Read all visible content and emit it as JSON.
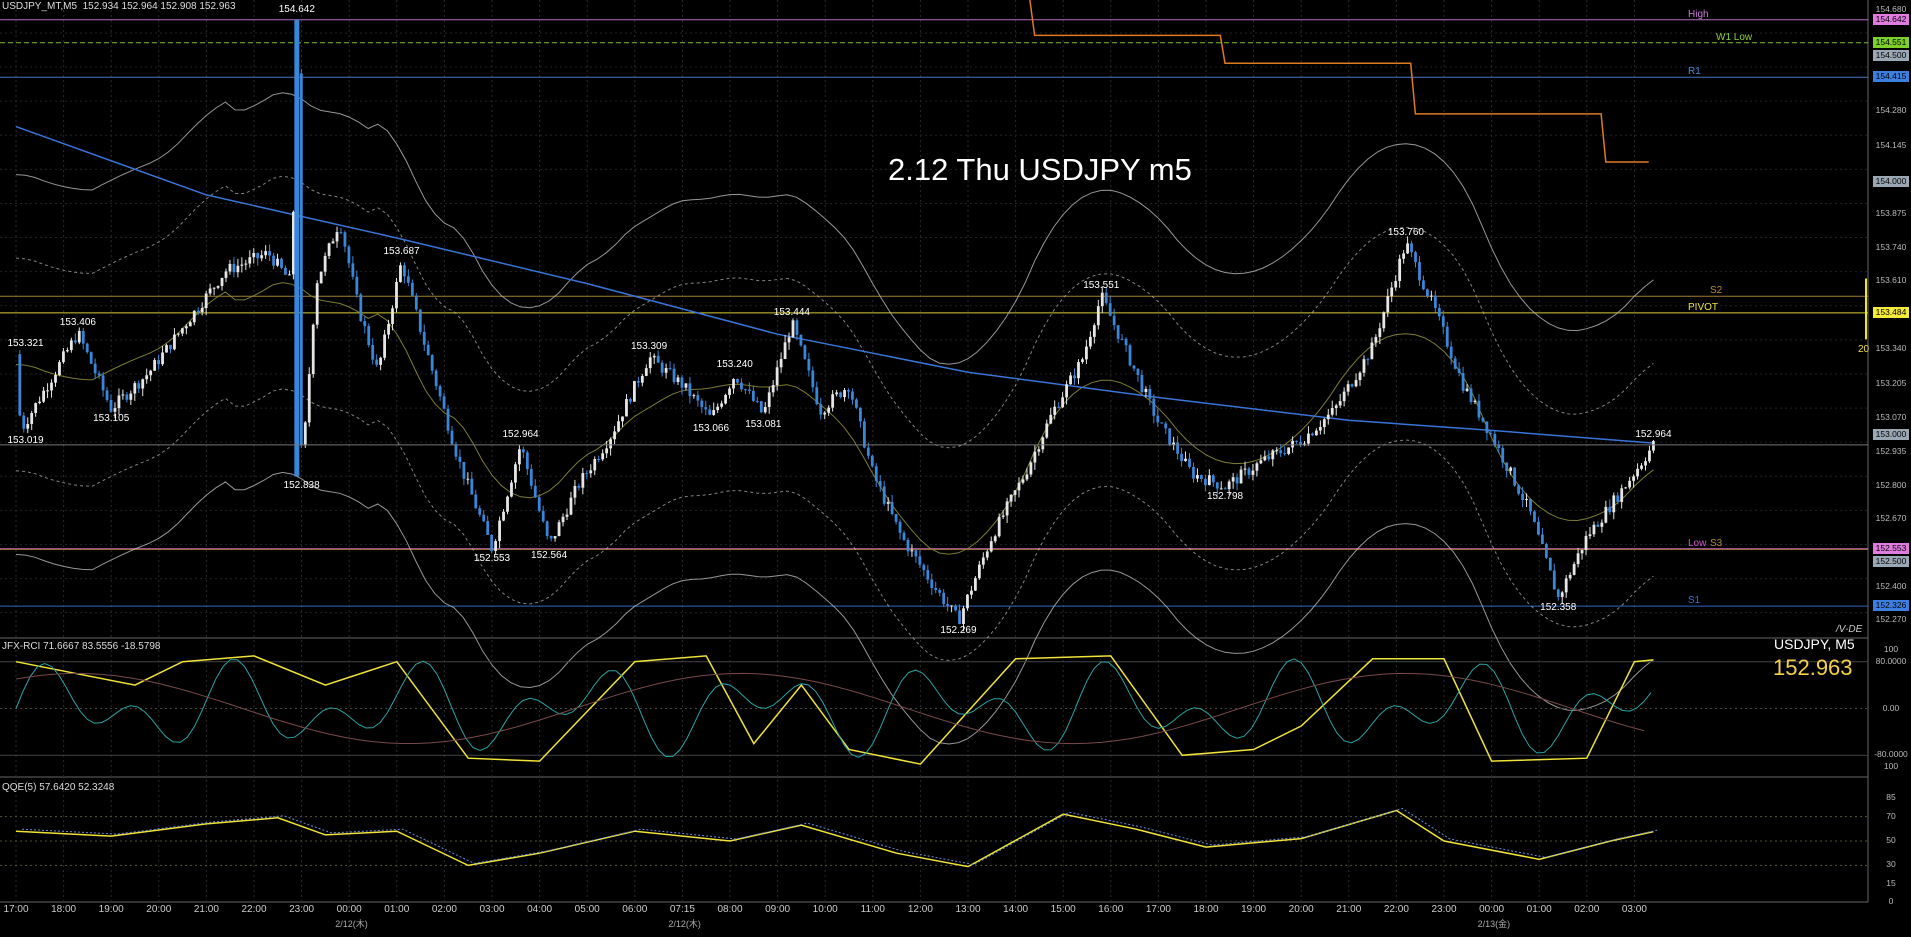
{
  "window": {
    "symbol_tf": "USDJPY_MT,M5",
    "ohlc": "152.934 152.964 152.908 152.963",
    "title_overlay": "2.12 Thu USDJPY m5",
    "badge": "/V-DE"
  },
  "price_panel": {
    "symbol_label": "USDJPY, M5",
    "current_price": "152.963",
    "vertical_tag": "20"
  },
  "levels": [
    {
      "name": "High",
      "price": 154.642,
      "color": "#c77bd6"
    },
    {
      "name": "W1 Low",
      "price": 154.551,
      "color": "#8fd22f"
    },
    {
      "name": "R1",
      "price": 154.415,
      "color": "#4f86d9"
    },
    {
      "name": "S2",
      "price": 153.55,
      "color": "#b58a3a"
    },
    {
      "name": "PIVOT",
      "price": 153.484,
      "color": "#f0e33a"
    },
    {
      "name": "Low",
      "price": 152.553,
      "color": "#d05ad0"
    },
    {
      "name": "S3",
      "price": 152.55,
      "color": "#b58a3a"
    },
    {
      "name": "S1",
      "price": 152.326,
      "color": "#3a6fd8"
    }
  ],
  "price_tags": [
    {
      "text": "154.642",
      "price": 154.642,
      "bg": "#e07be0"
    },
    {
      "text": "154.551",
      "price": 154.551,
      "bg": "#7dd02a"
    },
    {
      "text": "154.500",
      "price": 154.5,
      "bg": "#9aa7b4"
    },
    {
      "text": "154.415",
      "price": 154.415,
      "bg": "#3c7fe0"
    },
    {
      "text": "154.000",
      "price": 154.0,
      "bg": "#9aa7b4"
    },
    {
      "text": "153.484",
      "price": 153.484,
      "bg": "#f4ea3a"
    },
    {
      "text": "153.000",
      "price": 153.0,
      "bg": "#9aa7b4"
    },
    {
      "text": "152.553",
      "price": 152.553,
      "bg": "#e07be0"
    },
    {
      "text": "152.500",
      "price": 152.5,
      "bg": "#9aa7b4"
    },
    {
      "text": "152.326",
      "price": 152.326,
      "bg": "#3c7fe0"
    }
  ],
  "price_axis_ticks": [
    "154.680",
    "154.280",
    "154.145",
    "153.875",
    "153.740",
    "153.610",
    "153.340",
    "153.205",
    "153.070",
    "152.935",
    "152.800",
    "152.670",
    "152.400",
    "152.270"
  ],
  "rci_panel": {
    "label": "JFX-RCI 71.6667 83.5556 -18.5798",
    "axis": [
      "100",
      "80.0000",
      "0.00",
      "-80.0000",
      "100"
    ]
  },
  "qqe_panel": {
    "label": "QQE(5) 57.6420 52.3248",
    "axis": [
      "85",
      "70",
      "50",
      "30",
      "15",
      "0"
    ]
  },
  "time_axis": [
    "17:00",
    "18:00",
    "19:00",
    "20:00",
    "21:00",
    "22:00",
    "23:00",
    "00:00",
    "01:00",
    "02:00",
    "03:00",
    "04:00",
    "05:00",
    "06:00",
    "07:15",
    "08:00",
    "09:00",
    "10:00",
    "11:00",
    "12:00",
    "13:00",
    "14:00",
    "15:00",
    "16:00",
    "17:00",
    "18:00",
    "19:00",
    "20:00",
    "21:00",
    "22:00",
    "23:00",
    "00:00",
    "01:00",
    "02:00",
    "03:00"
  ],
  "date_labels": [
    {
      "text": "2/12(木)",
      "slot": 7
    },
    {
      "text": "2/12(木)",
      "slot": 14
    },
    {
      "text": "2/13(金)",
      "slot": 31
    }
  ],
  "chart_data": {
    "type": "candlestick",
    "title": "2.12 Thu USDJPY m5",
    "symbol": "USDJPY",
    "timeframe": "M5",
    "ylim": [
      152.2,
      154.72
    ],
    "price_path": [
      {
        "t": 0,
        "p": 153.321
      },
      {
        "t": 0.1,
        "p": 153.019
      },
      {
        "t": 1.3,
        "p": 153.406
      },
      {
        "t": 2,
        "p": 153.105
      },
      {
        "t": 2.8,
        "p": 153.25
      },
      {
        "t": 3.6,
        "p": 153.45
      },
      {
        "t": 4.4,
        "p": 153.65
      },
      {
        "t": 5.3,
        "p": 153.72
      },
      {
        "t": 5.8,
        "p": 153.6
      },
      {
        "t": 5.9,
        "p": 154.642
      },
      {
        "t": 6.0,
        "p": 152.838
      },
      {
        "t": 6.3,
        "p": 153.6
      },
      {
        "t": 6.8,
        "p": 153.85
      },
      {
        "t": 7.2,
        "p": 153.5
      },
      {
        "t": 7.6,
        "p": 153.25
      },
      {
        "t": 8.1,
        "p": 153.687
      },
      {
        "t": 8.6,
        "p": 153.35
      },
      {
        "t": 9.3,
        "p": 152.9
      },
      {
        "t": 10.0,
        "p": 152.553
      },
      {
        "t": 10.6,
        "p": 152.964
      },
      {
        "t": 11.2,
        "p": 152.564
      },
      {
        "t": 11.8,
        "p": 152.8
      },
      {
        "t": 12.5,
        "p": 153.0
      },
      {
        "t": 13.3,
        "p": 153.309
      },
      {
        "t": 14.0,
        "p": 153.2
      },
      {
        "t": 14.6,
        "p": 153.066
      },
      {
        "t": 15.1,
        "p": 153.24
      },
      {
        "t": 15.7,
        "p": 153.081
      },
      {
        "t": 16.3,
        "p": 153.444
      },
      {
        "t": 16.9,
        "p": 153.1
      },
      {
        "t": 17.5,
        "p": 153.2
      },
      {
        "t": 18.0,
        "p": 152.85
      },
      {
        "t": 18.6,
        "p": 152.6
      },
      {
        "t": 19.3,
        "p": 152.4
      },
      {
        "t": 19.8,
        "p": 152.269
      },
      {
        "t": 20.5,
        "p": 152.6
      },
      {
        "t": 21.2,
        "p": 152.85
      },
      {
        "t": 21.8,
        "p": 153.1
      },
      {
        "t": 22.4,
        "p": 153.3
      },
      {
        "t": 22.8,
        "p": 153.551
      },
      {
        "t": 23.4,
        "p": 153.3
      },
      {
        "t": 24.0,
        "p": 153.05
      },
      {
        "t": 24.7,
        "p": 152.85
      },
      {
        "t": 25.4,
        "p": 152.798
      },
      {
        "t": 26.2,
        "p": 152.9
      },
      {
        "t": 27.0,
        "p": 152.98
      },
      {
        "t": 27.7,
        "p": 153.1
      },
      {
        "t": 28.5,
        "p": 153.35
      },
      {
        "t": 29.2,
        "p": 153.76
      },
      {
        "t": 29.8,
        "p": 153.5
      },
      {
        "t": 30.4,
        "p": 153.2
      },
      {
        "t": 31.0,
        "p": 153.0
      },
      {
        "t": 31.8,
        "p": 152.7
      },
      {
        "t": 32.4,
        "p": 152.358
      },
      {
        "t": 33.0,
        "p": 152.6
      },
      {
        "t": 33.8,
        "p": 152.8
      },
      {
        "t": 34.4,
        "p": 152.963
      }
    ],
    "price_labels": [
      {
        "text": "154.642",
        "t": 5.9,
        "p": 154.642,
        "pos": "above"
      },
      {
        "text": "153.321",
        "t": 0.2,
        "p": 153.321,
        "pos": "above"
      },
      {
        "text": "153.406",
        "t": 1.3,
        "p": 153.406,
        "pos": "above"
      },
      {
        "text": "153.105",
        "t": 2,
        "p": 153.105,
        "pos": "below"
      },
      {
        "text": "153.019",
        "t": 0.2,
        "p": 153.019,
        "pos": "below"
      },
      {
        "text": "152.838",
        "t": 6.0,
        "p": 152.838,
        "pos": "below"
      },
      {
        "text": "153.687",
        "t": 8.1,
        "p": 153.687,
        "pos": "above"
      },
      {
        "text": "152.964",
        "t": 10.6,
        "p": 152.964,
        "pos": "above"
      },
      {
        "text": "152.553",
        "t": 10.0,
        "p": 152.553,
        "pos": "below"
      },
      {
        "text": "152.564",
        "t": 11.2,
        "p": 152.564,
        "pos": "below"
      },
      {
        "text": "153.309",
        "t": 13.3,
        "p": 153.309,
        "pos": "above"
      },
      {
        "text": "153.066",
        "t": 14.6,
        "p": 153.066,
        "pos": "below"
      },
      {
        "text": "153.240",
        "t": 15.1,
        "p": 153.24,
        "pos": "above"
      },
      {
        "text": "153.081",
        "t": 15.7,
        "p": 153.081,
        "pos": "below"
      },
      {
        "text": "153.444",
        "t": 16.3,
        "p": 153.444,
        "pos": "above"
      },
      {
        "text": "152.269",
        "t": 19.8,
        "p": 152.269,
        "pos": "below"
      },
      {
        "text": "153.551",
        "t": 22.8,
        "p": 153.551,
        "pos": "above"
      },
      {
        "text": "152.798",
        "t": 25.4,
        "p": 152.798,
        "pos": "below"
      },
      {
        "text": "153.760",
        "t": 29.2,
        "p": 153.76,
        "pos": "above"
      },
      {
        "text": "152.358",
        "t": 32.4,
        "p": 152.358,
        "pos": "below"
      },
      {
        "text": "152.964",
        "t": 34.4,
        "p": 152.964,
        "pos": "above"
      }
    ],
    "ma_path": [
      {
        "t": 0,
        "p": 154.22
      },
      {
        "t": 4,
        "p": 153.95
      },
      {
        "t": 8,
        "p": 153.78
      },
      {
        "t": 12,
        "p": 153.6
      },
      {
        "t": 16,
        "p": 153.4
      },
      {
        "t": 20,
        "p": 153.25
      },
      {
        "t": 24,
        "p": 153.15
      },
      {
        "t": 28,
        "p": 153.06
      },
      {
        "t": 31,
        "p": 153.02
      },
      {
        "t": 34.4,
        "p": 152.97
      }
    ],
    "step_line": [
      {
        "t": 21.3,
        "p": 154.72
      },
      {
        "t": 21.4,
        "p": 154.58
      },
      {
        "t": 25.3,
        "p": 154.58
      },
      {
        "t": 25.4,
        "p": 154.47
      },
      {
        "t": 29.3,
        "p": 154.47
      },
      {
        "t": 29.4,
        "p": 154.27
      },
      {
        "t": 33.3,
        "p": 154.27
      },
      {
        "t": 33.4,
        "p": 154.08
      },
      {
        "t": 34.3,
        "p": 154.08
      }
    ],
    "rci_series": [
      {
        "name": "RCI slow",
        "values": [
          {
            "t": 0,
            "v": 80
          },
          {
            "t": 2.5,
            "v": 40
          },
          {
            "t": 3.5,
            "v": 80
          },
          {
            "t": 5,
            "v": 90
          },
          {
            "t": 6.5,
            "v": 40
          },
          {
            "t": 8,
            "v": 80
          },
          {
            "t": 9.5,
            "v": -85
          },
          {
            "t": 11,
            "v": -90
          },
          {
            "t": 13,
            "v": 80
          },
          {
            "t": 14.5,
            "v": 90
          },
          {
            "t": 15.5,
            "v": -60
          },
          {
            "t": 16.5,
            "v": 40
          },
          {
            "t": 17.5,
            "v": -70
          },
          {
            "t": 19,
            "v": -95
          },
          {
            "t": 21,
            "v": 85
          },
          {
            "t": 23,
            "v": 90
          },
          {
            "t": 24.5,
            "v": -80
          },
          {
            "t": 26,
            "v": -70
          },
          {
            "t": 27,
            "v": -30
          },
          {
            "t": 28.5,
            "v": 85
          },
          {
            "t": 30,
            "v": 85
          },
          {
            "t": 31,
            "v": -90
          },
          {
            "t": 33,
            "v": -85
          },
          {
            "t": 34,
            "v": 80
          },
          {
            "t": 34.4,
            "v": 83
          }
        ]
      }
    ],
    "qqe_series": [
      {
        "name": "QQE",
        "values": [
          {
            "t": 0,
            "v": 58
          },
          {
            "t": 2,
            "v": 54
          },
          {
            "t": 4,
            "v": 64
          },
          {
            "t": 5.5,
            "v": 69
          },
          {
            "t": 6.5,
            "v": 55
          },
          {
            "t": 8,
            "v": 58
          },
          {
            "t": 9.5,
            "v": 30
          },
          {
            "t": 11,
            "v": 40
          },
          {
            "t": 13,
            "v": 58
          },
          {
            "t": 15,
            "v": 50
          },
          {
            "t": 16.5,
            "v": 63
          },
          {
            "t": 18.5,
            "v": 40
          },
          {
            "t": 20,
            "v": 29
          },
          {
            "t": 22,
            "v": 72
          },
          {
            "t": 23.5,
            "v": 60
          },
          {
            "t": 25,
            "v": 45
          },
          {
            "t": 27,
            "v": 52
          },
          {
            "t": 29,
            "v": 75
          },
          {
            "t": 30,
            "v": 50
          },
          {
            "t": 32,
            "v": 35
          },
          {
            "t": 33.5,
            "v": 50
          },
          {
            "t": 34.4,
            "v": 57.6
          }
        ]
      }
    ]
  }
}
